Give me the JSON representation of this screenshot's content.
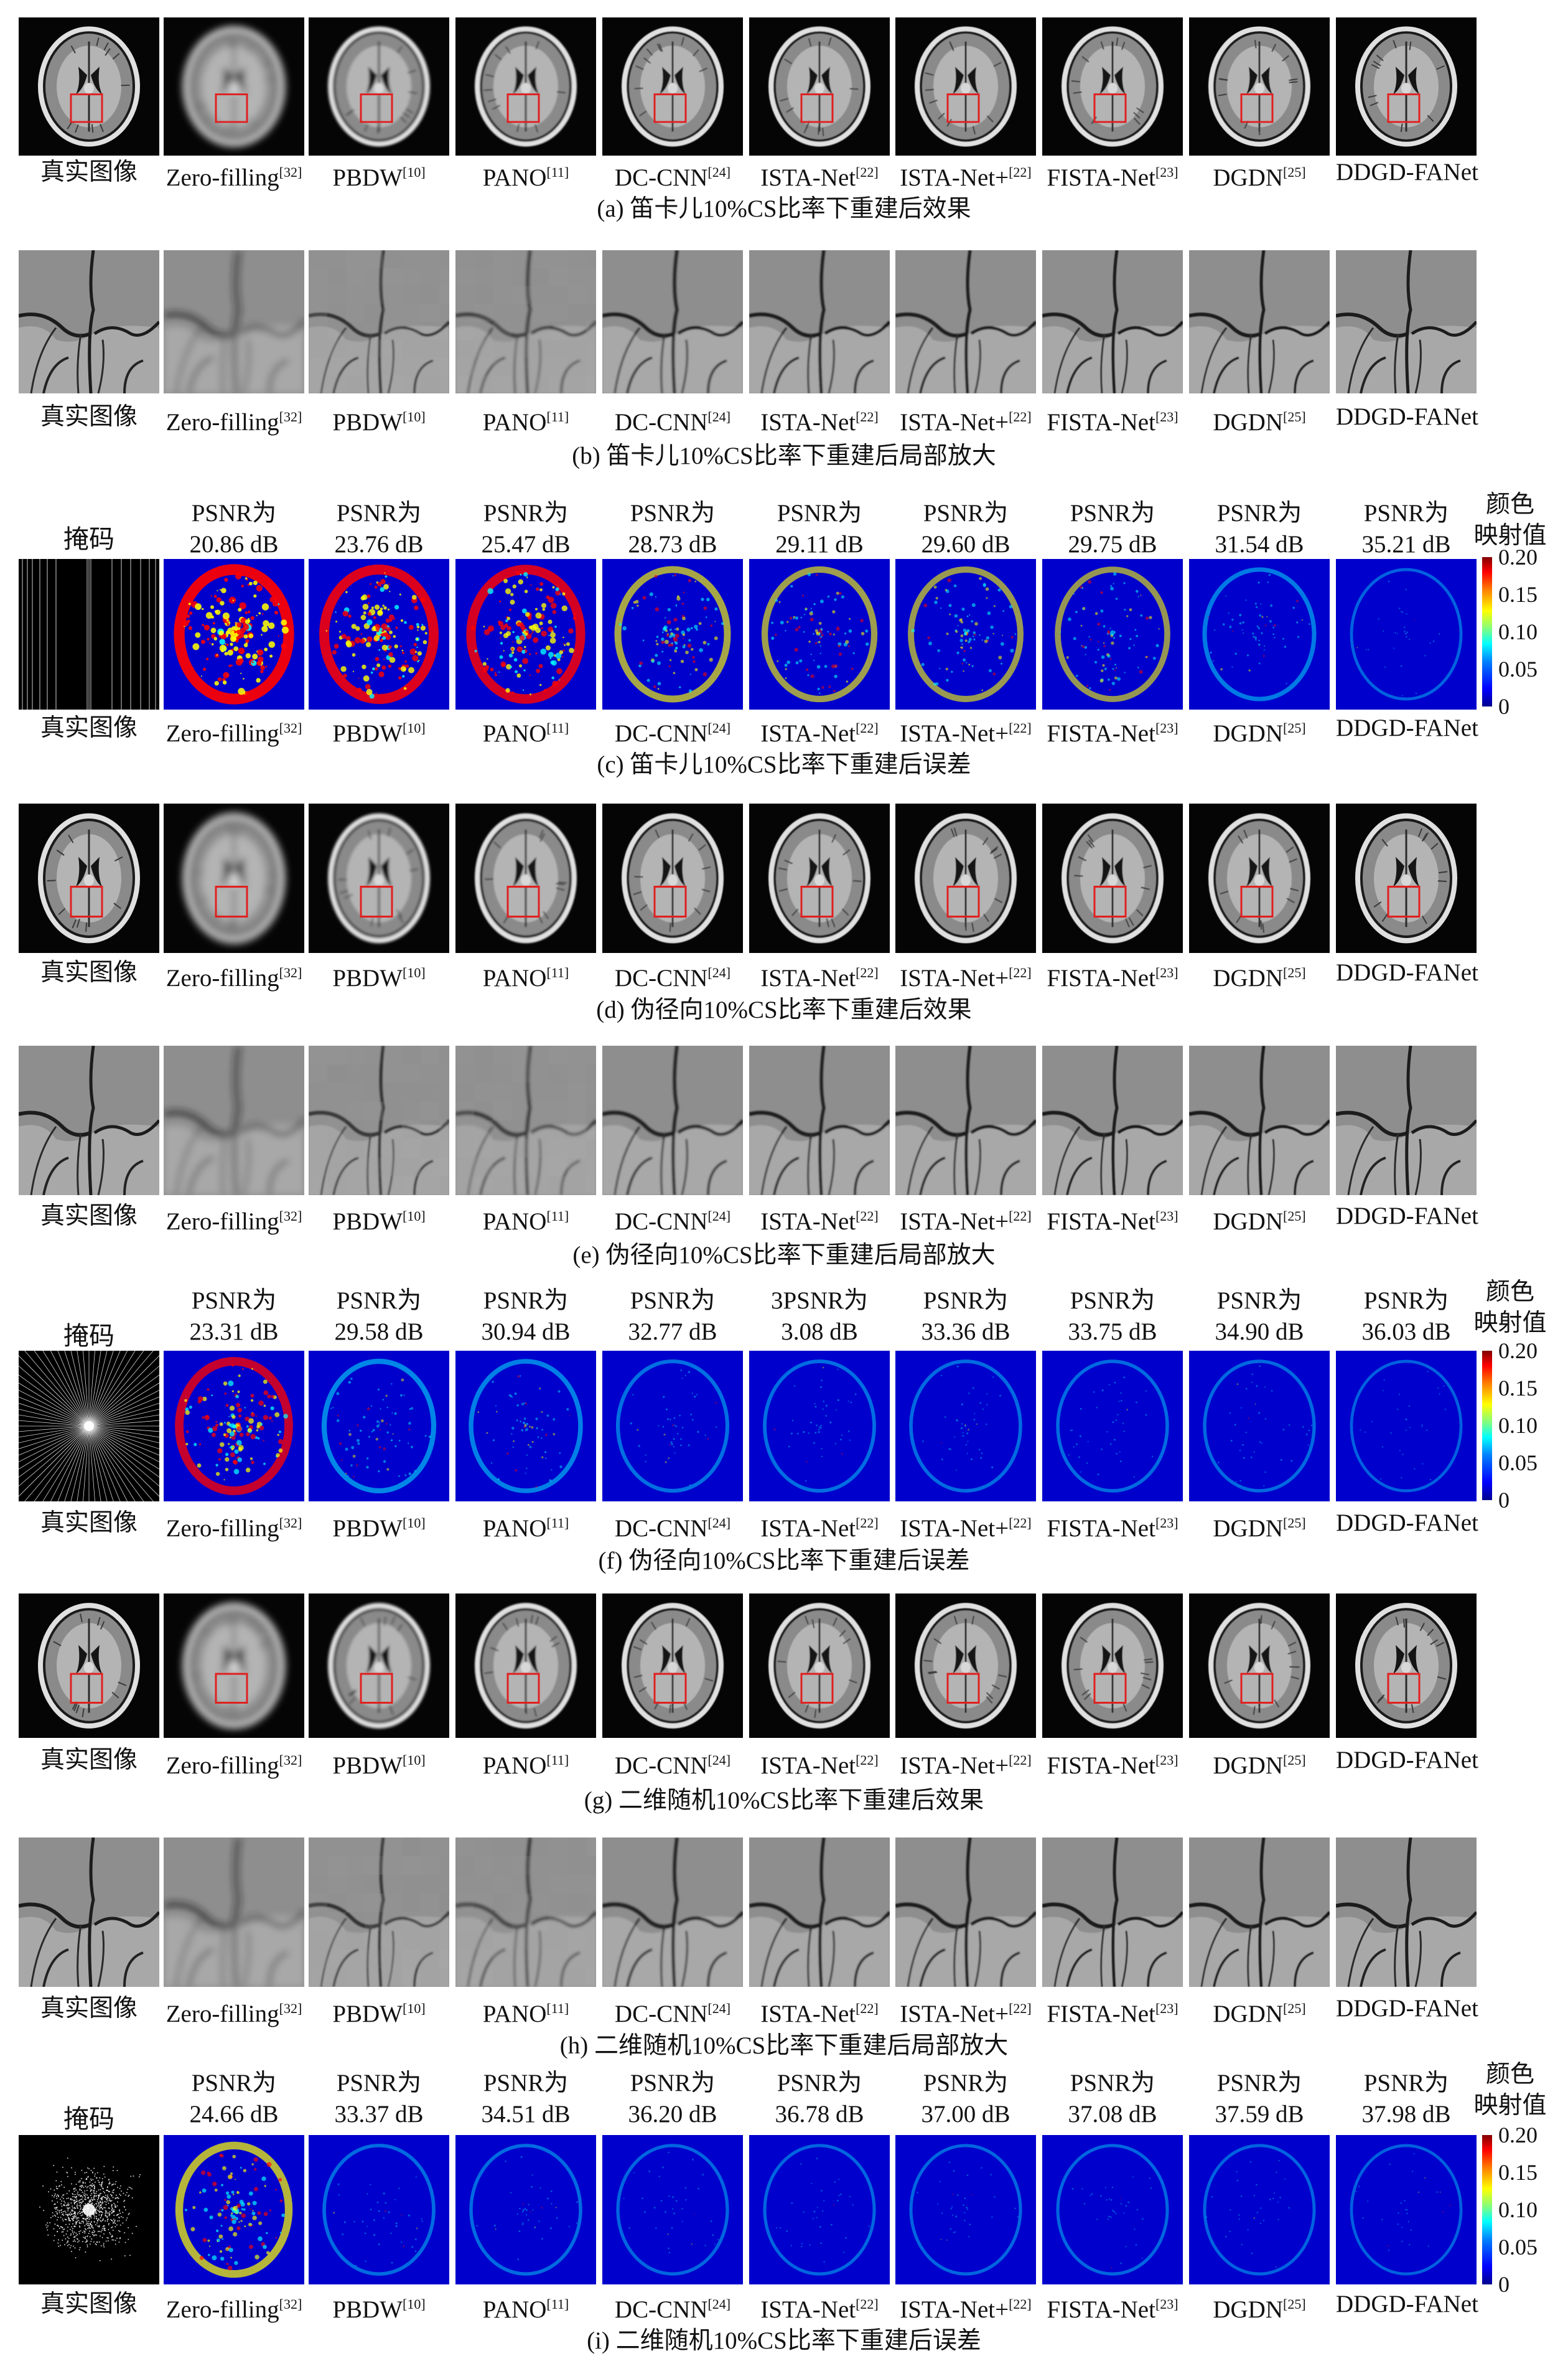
{
  "methods": [
    {
      "name": "真实图像",
      "ref": ""
    },
    {
      "name": "Zero-filling",
      "ref": "[32]"
    },
    {
      "name": "PBDW",
      "ref": "[10]"
    },
    {
      "name": "PANO",
      "ref": "[11]"
    },
    {
      "name": "DC-CNN",
      "ref": "[24]"
    },
    {
      "name": "ISTA-Net",
      "ref": "[22]"
    },
    {
      "name": "ISTA-Net+",
      "ref": "[22]"
    },
    {
      "name": "FISTA-Net",
      "ref": "[23]"
    },
    {
      "name": "DGDN",
      "ref": "[25]"
    },
    {
      "name": "DDGD-FANet",
      "ref": ""
    }
  ],
  "mask_label": "掩码",
  "colorbar": {
    "title_line1": "颜色",
    "title_line2": "映射值",
    "ticks": [
      "0.20",
      "0.15",
      "0.10",
      "0.05",
      "0"
    ],
    "colors": [
      "#00008f",
      "#0000ff",
      "#00ffff",
      "#ffff00",
      "#ff0000",
      "#800000"
    ]
  },
  "sections": [
    {
      "id": "a",
      "kind": "recon",
      "caption": "(a) 笛卡儿10%CS比率下重建后效果"
    },
    {
      "id": "b",
      "kind": "zoom",
      "caption": "(b) 笛卡儿10%CS比率下重建后局部放大"
    },
    {
      "id": "c",
      "kind": "error",
      "mask": "cartesian",
      "caption": "(c) 笛卡儿10%CS比率下重建后误差",
      "psnr": [
        [
          "PSNR为",
          "20.86 dB"
        ],
        [
          "PSNR为",
          "23.76 dB"
        ],
        [
          "PSNR为",
          "25.47 dB"
        ],
        [
          "PSNR为",
          "28.73 dB"
        ],
        [
          "PSNR为",
          "29.11 dB"
        ],
        [
          "PSNR为",
          "29.60 dB"
        ],
        [
          "PSNR为",
          "29.75 dB"
        ],
        [
          "PSNR为",
          "31.54 dB"
        ],
        [
          "PSNR为",
          "35.21 dB"
        ]
      ],
      "error_levels": [
        0.95,
        0.85,
        0.8,
        0.5,
        0.45,
        0.42,
        0.4,
        0.22,
        0.06
      ]
    },
    {
      "id": "d",
      "kind": "recon",
      "caption": "(d) 伪径向10%CS比率下重建后效果"
    },
    {
      "id": "e",
      "kind": "zoom",
      "caption": "(e) 伪径向10%CS比率下重建后局部放大"
    },
    {
      "id": "f",
      "kind": "error",
      "mask": "radial",
      "caption": "(f) 伪径向10%CS比率下重建后误差",
      "psnr": [
        [
          "PSNR为",
          "23.31 dB"
        ],
        [
          "PSNR为",
          "29.58 dB"
        ],
        [
          "PSNR为",
          "30.94 dB"
        ],
        [
          "PSNR为",
          "32.77 dB"
        ],
        [
          "3PSNR为",
          "3.08 dB"
        ],
        [
          "PSNR为",
          "33.36 dB"
        ],
        [
          "PSNR为",
          "33.75 dB"
        ],
        [
          "PSNR为",
          "34.90 dB"
        ],
        [
          "PSNR为",
          "36.03 dB"
        ]
      ],
      "error_levels": [
        0.7,
        0.3,
        0.25,
        0.15,
        0.13,
        0.12,
        0.11,
        0.1,
        0.05
      ]
    },
    {
      "id": "g",
      "kind": "recon",
      "caption": "(g) 二维随机10%CS比率下重建后效果"
    },
    {
      "id": "h",
      "kind": "zoom",
      "caption": "(h) 二维随机10%CS比率下重建后局部放大"
    },
    {
      "id": "i",
      "kind": "error",
      "mask": "random",
      "caption": "(i) 二维随机10%CS比率下重建后误差",
      "psnr": [
        [
          "PSNR为",
          "24.66 dB"
        ],
        [
          "PSNR为",
          "33.37 dB"
        ],
        [
          "PSNR为",
          "34.51 dB"
        ],
        [
          "PSNR为",
          "36.20 dB"
        ],
        [
          "PSNR为",
          "36.78 dB"
        ],
        [
          "PSNR为",
          "37.00 dB"
        ],
        [
          "PSNR为",
          "37.08 dB"
        ],
        [
          "PSNR为",
          "37.59 dB"
        ],
        [
          "PSNR为",
          "37.98 dB"
        ]
      ],
      "error_levels": [
        0.6,
        0.12,
        0.11,
        0.09,
        0.08,
        0.08,
        0.08,
        0.07,
        0.05
      ]
    }
  ]
}
